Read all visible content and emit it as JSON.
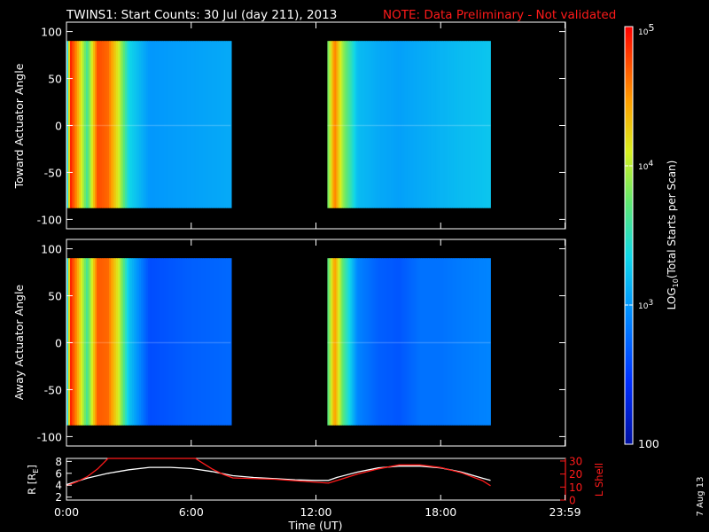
{
  "title": {
    "main": "TWINS1: Start Counts: 30 Jul (day 211), 2013",
    "note": "NOTE: Data Preliminary - Not validated",
    "note_color": "#ff1a1a"
  },
  "colorbar": {
    "label_prefix": "LOG",
    "label_sub": "10",
    "label_suffix": "(Total Starts per Scan)",
    "ticks": [
      {
        "text": "100",
        "kind": "plain",
        "value": 100
      },
      {
        "text": "10",
        "sup": "3",
        "kind": "pow",
        "value": 1000
      },
      {
        "text": "10",
        "sup": "4",
        "kind": "pow",
        "value": 10000
      },
      {
        "text": "10",
        "sup": "5",
        "kind": "pow",
        "value": 100000
      }
    ],
    "scale": "log",
    "range": [
      100,
      100000
    ]
  },
  "date_stamp": "7 Aug 13",
  "chart_data": [
    {
      "type": "heatmap",
      "panel": "toward",
      "ylabel": "Toward Actuator Angle",
      "ylim": [
        -110,
        110
      ],
      "yticks": [
        "100",
        "50",
        "0",
        "-50",
        "-100"
      ],
      "ytick_values": [
        100,
        50,
        0,
        -50,
        -100
      ],
      "x_units": "UT hours",
      "data_blocks": [
        {
          "x_start": 0.0,
          "x_end": 7.9,
          "y_range": [
            -88,
            90
          ]
        },
        {
          "x_start": 12.55,
          "x_end": 20.4,
          "y_range": [
            -88,
            90
          ]
        }
      ],
      "profile_x": [
        0.0,
        0.2,
        0.5,
        1.0,
        1.5,
        2.0,
        2.5,
        3.0,
        4.0,
        6.0,
        7.9,
        12.55,
        12.9,
        13.3,
        14.0,
        15.0,
        16.0,
        17.0,
        18.0,
        19.0,
        20.4
      ],
      "profile_log10_counts": [
        3.0,
        4.9,
        4.5,
        3.6,
        4.75,
        4.65,
        4.1,
        3.35,
        3.0,
        3.05,
        3.1,
        3.7,
        4.6,
        3.9,
        3.2,
        3.1,
        3.05,
        3.1,
        3.15,
        3.2,
        3.25
      ]
    },
    {
      "type": "heatmap",
      "panel": "away",
      "ylabel": "Away Actuator Angle",
      "ylim": [
        -110,
        110
      ],
      "yticks": [
        "100",
        "50",
        "0",
        "-50",
        "-100"
      ],
      "ytick_values": [
        100,
        50,
        0,
        -50,
        -100
      ],
      "x_units": "UT hours",
      "data_blocks": [
        {
          "x_start": 0.0,
          "x_end": 7.9,
          "y_range": [
            -88,
            90
          ]
        },
        {
          "x_start": 12.55,
          "x_end": 20.4,
          "y_range": [
            -88,
            90
          ]
        }
      ],
      "profile_x": [
        0.0,
        0.2,
        0.5,
        1.0,
        1.5,
        2.0,
        2.5,
        3.0,
        4.0,
        6.0,
        7.9,
        12.55,
        12.9,
        13.3,
        14.0,
        15.0,
        16.0,
        17.0,
        18.0,
        19.0,
        20.4
      ],
      "profile_log10_counts": [
        3.0,
        4.9,
        4.5,
        3.6,
        4.7,
        4.65,
        4.1,
        3.25,
        2.6,
        2.7,
        2.75,
        3.6,
        4.5,
        3.7,
        2.9,
        2.7,
        2.65,
        2.8,
        2.8,
        2.85,
        2.9
      ]
    },
    {
      "type": "line",
      "panel": "orbit",
      "xlabel": "Time (UT)",
      "xticks": [
        "0:00",
        "6:00",
        "12:00",
        "18:00",
        "23:59"
      ],
      "xtick_values": [
        0,
        6,
        12,
        18,
        23.98
      ],
      "xlim": [
        0,
        24
      ],
      "ylabel_left": "R [R",
      "ylabel_left_sub": "E",
      "ylabel_left_close": "]",
      "yticks_left": [
        "8",
        "6",
        "4",
        "2"
      ],
      "ytick_values_left": [
        8,
        6,
        4,
        2
      ],
      "ylim_left": [
        1.5,
        8.5
      ],
      "ylabel_right": "L Shell",
      "yticks_right": [
        "30",
        "20",
        "10",
        "0"
      ],
      "ytick_values_right": [
        30,
        20,
        10,
        0
      ],
      "ylim_right": [
        0,
        32
      ],
      "series": [
        {
          "axis": "left",
          "color": "#ffffff",
          "x": [
            0.0,
            1.0,
            2.0,
            3.0,
            4.0,
            5.0,
            6.0,
            7.0,
            8.0,
            9.0,
            10.0,
            11.0,
            12.0,
            12.6,
            13.0,
            14.0,
            15.0,
            16.0,
            17.0,
            18.0,
            19.0,
            20.0,
            20.4
          ],
          "values": [
            4.1,
            5.2,
            6.0,
            6.6,
            7.0,
            7.0,
            6.8,
            6.3,
            5.6,
            5.3,
            5.1,
            4.9,
            4.8,
            4.8,
            5.3,
            6.2,
            6.9,
            7.2,
            7.2,
            6.9,
            6.2,
            5.2,
            4.8
          ]
        },
        {
          "axis": "right",
          "color": "#ff1a1a",
          "x": [
            0.0,
            0.5,
            1.0,
            1.5,
            2.0,
            6.2,
            6.6,
            7.0,
            7.5,
            8.0,
            10.0,
            12.6,
            14.0,
            15.0,
            16.0,
            17.0,
            18.0,
            19.0,
            20.0,
            20.4
          ],
          "values": [
            11,
            14,
            18,
            24,
            32,
            32,
            28,
            24,
            20,
            17,
            16,
            13,
            20,
            24,
            27,
            27,
            25,
            21,
            15,
            11
          ]
        }
      ]
    }
  ]
}
